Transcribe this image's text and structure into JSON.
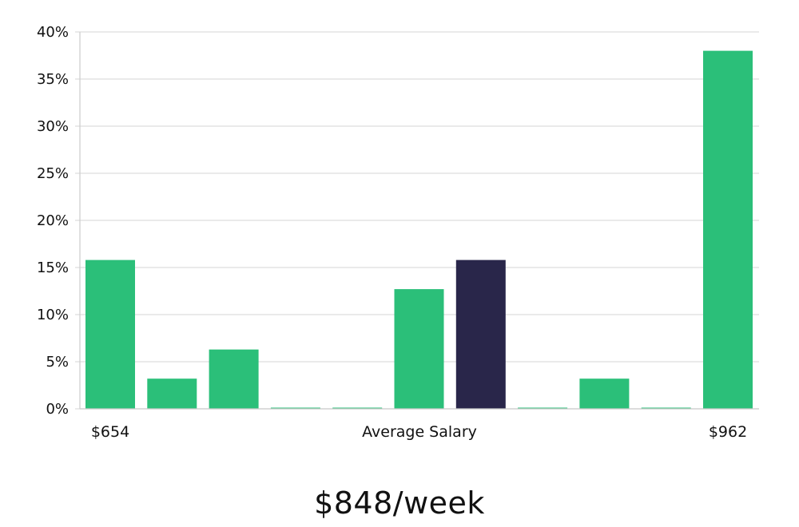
{
  "chart_data": {
    "type": "bar",
    "title": "",
    "xlabel": "",
    "ylabel": "",
    "ylim": [
      0,
      40
    ],
    "yticks": [
      "0%",
      "5%",
      "10%",
      "15%",
      "20%",
      "25%",
      "30%",
      "35%",
      "40%"
    ],
    "grid": true,
    "values": [
      15.8,
      3.2,
      6.3,
      0,
      0,
      12.7,
      15.8,
      0,
      3.2,
      0,
      38.0
    ],
    "highlight_index": 6,
    "colors": {
      "bar": "#2bbf79",
      "highlight": "#29264a",
      "grid": "#dddddd",
      "axis": "#cccccc"
    },
    "x_labels": {
      "left": "$654",
      "center": "Average Salary",
      "right": "$962"
    }
  },
  "headline": "$848/week"
}
